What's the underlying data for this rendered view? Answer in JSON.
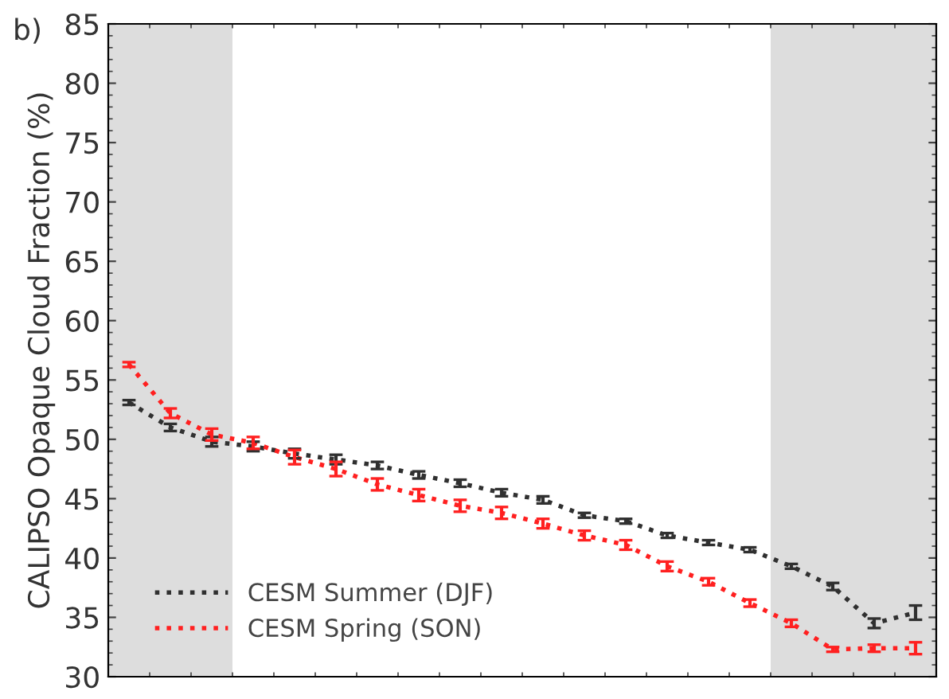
{
  "chart_data": {
    "type": "line",
    "ylabel": "CALIPSO Opaque Cloud Fraction (%)",
    "annotations": [
      "b)"
    ],
    "categories": [
      null,
      null,
      null,
      null,
      null,
      null,
      null,
      null,
      null,
      null,
      null,
      null,
      null,
      null,
      null,
      null,
      null,
      null,
      null,
      null
    ],
    "ylim": [
      30,
      85
    ],
    "yticks": [
      30,
      35,
      40,
      45,
      50,
      55,
      60,
      65,
      70,
      75,
      80,
      85
    ],
    "tick_labels": "y",
    "series": [
      {
        "name": "CESM Summer (DJF)",
        "color": "#303030",
        "values": [
          53.1,
          51.0,
          49.8,
          49.4,
          48.8,
          48.3,
          47.8,
          47.0,
          46.3,
          45.5,
          44.9,
          43.6,
          43.1,
          41.9,
          41.3,
          40.7,
          39.3,
          37.6,
          34.5,
          35.4
        ],
        "errors": [
          0.2,
          0.3,
          0.4,
          0.4,
          0.4,
          0.4,
          0.3,
          0.3,
          0.3,
          0.3,
          0.3,
          0.2,
          0.2,
          0.2,
          0.2,
          0.2,
          0.2,
          0.3,
          0.4,
          0.6
        ]
      },
      {
        "name": "CESM Spring (SON)",
        "color": "#ff2020",
        "values": [
          56.3,
          52.2,
          50.4,
          49.7,
          48.5,
          47.5,
          46.2,
          45.3,
          44.4,
          43.8,
          42.9,
          41.9,
          41.1,
          39.3,
          38.0,
          36.2,
          34.5,
          32.3,
          32.4,
          32.4
        ],
        "errors": [
          0.2,
          0.4,
          0.5,
          0.5,
          0.6,
          0.6,
          0.5,
          0.5,
          0.5,
          0.5,
          0.4,
          0.4,
          0.4,
          0.4,
          0.3,
          0.3,
          0.3,
          0.2,
          0.3,
          0.5
        ]
      }
    ],
    "line_style": "dotted",
    "marker": "none",
    "legend": "bottom left"
  }
}
